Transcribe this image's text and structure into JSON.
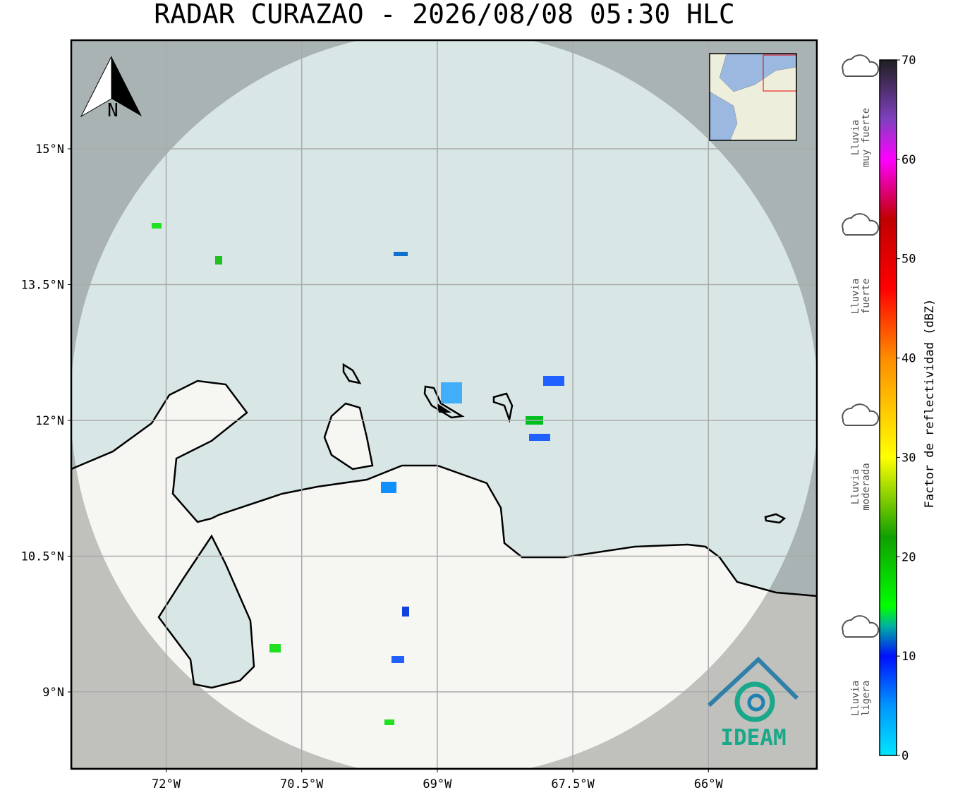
{
  "title": "RADAR CURAZAO - 2026/08/08 05:30 HLC",
  "map": {
    "lonlim": [
      -73.05,
      -64.8
    ],
    "latlim": [
      8.15,
      16.2
    ],
    "lon_ticks": [
      {
        "value": -72,
        "label": "72°W"
      },
      {
        "value": -70.5,
        "label": "70.5°W"
      },
      {
        "value": -69,
        "label": "69°W"
      },
      {
        "value": -67.5,
        "label": "67.5°W"
      },
      {
        "value": -66,
        "label": "66°W"
      }
    ],
    "lat_ticks": [
      {
        "value": 15,
        "label": "15°N"
      },
      {
        "value": 13.5,
        "label": "13.5°N"
      },
      {
        "value": 12,
        "label": "12°N"
      },
      {
        "value": 10.5,
        "label": "10.5°N"
      },
      {
        "value": 9,
        "label": "9°N"
      }
    ],
    "grid": true,
    "north_label": "N",
    "logo_text": "IDEAM"
  },
  "colorbar": {
    "label": "Factor de reflectividad (dBZ)",
    "lim": [
      0,
      70
    ],
    "ticks": [
      0,
      10,
      20,
      30,
      40,
      50,
      60,
      70
    ],
    "stops": [
      {
        "value": 0,
        "color": "#00e5ff"
      },
      {
        "value": 5,
        "color": "#0096ff"
      },
      {
        "value": 10,
        "color": "#0010ff"
      },
      {
        "value": 13,
        "color": "#00b0a0"
      },
      {
        "value": 15,
        "color": "#00ff00"
      },
      {
        "value": 22,
        "color": "#10a000"
      },
      {
        "value": 30,
        "color": "#ffff00"
      },
      {
        "value": 40,
        "color": "#ff8c00"
      },
      {
        "value": 47,
        "color": "#ff0000"
      },
      {
        "value": 54,
        "color": "#c00000"
      },
      {
        "value": 60,
        "color": "#ff00ff"
      },
      {
        "value": 64,
        "color": "#8040c0"
      },
      {
        "value": 70,
        "color": "#202020"
      }
    ]
  },
  "rain_levels": [
    {
      "lines": [
        "Lluvia",
        "muy fuerte"
      ]
    },
    {
      "lines": [
        "Lluvia",
        "fuerte"
      ]
    },
    {
      "lines": [
        "Lluvia",
        "moderada"
      ]
    },
    {
      "lines": [
        "Lluvia",
        "ligera"
      ]
    }
  ]
}
